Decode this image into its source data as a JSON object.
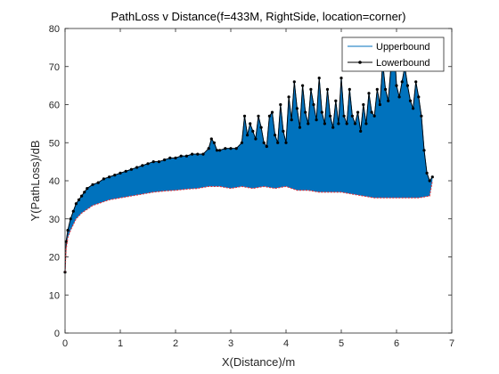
{
  "chart_data": {
    "type": "area",
    "title": "PathLoss v Distance(f=433M, RightSide, location=corner)",
    "xlabel": "X(Distance)/m",
    "ylabel": "Y(PathLoss)/dB",
    "xlim": [
      0,
      7
    ],
    "ylim": [
      0,
      80
    ],
    "xticks": [
      "0",
      "1",
      "2",
      "3",
      "4",
      "5",
      "6",
      "7"
    ],
    "yticks": [
      "0",
      "10",
      "20",
      "30",
      "40",
      "50",
      "60",
      "70",
      "80"
    ],
    "grid": false,
    "legend_position": "top-right",
    "fill_color": "#0072BD",
    "series": [
      {
        "name": "Upperbound",
        "color": "#0072BD",
        "x": [
          0,
          0.02,
          0.05,
          0.1,
          0.15,
          0.2,
          0.25,
          0.3,
          0.35,
          0.4,
          0.5,
          0.6,
          0.7,
          0.8,
          0.9,
          1.0,
          1.1,
          1.2,
          1.3,
          1.4,
          1.5,
          1.6,
          1.7,
          1.8,
          1.9,
          2.0,
          2.1,
          2.2,
          2.3,
          2.4,
          2.5,
          2.6,
          2.65,
          2.7,
          2.75,
          2.8,
          2.9,
          3.0,
          3.1,
          3.2,
          3.25,
          3.3,
          3.35,
          3.4,
          3.45,
          3.5,
          3.55,
          3.6,
          3.65,
          3.7,
          3.75,
          3.8,
          3.85,
          3.9,
          3.95,
          4.0,
          4.05,
          4.1,
          4.15,
          4.2,
          4.25,
          4.3,
          4.35,
          4.4,
          4.45,
          4.5,
          4.55,
          4.6,
          4.65,
          4.7,
          4.75,
          4.8,
          4.85,
          4.9,
          4.95,
          5.0,
          5.05,
          5.1,
          5.15,
          5.2,
          5.25,
          5.3,
          5.35,
          5.4,
          5.45,
          5.5,
          5.55,
          5.6,
          5.65,
          5.7,
          5.75,
          5.8,
          5.85,
          5.9,
          5.95,
          6.0,
          6.05,
          6.1,
          6.15,
          6.2,
          6.25,
          6.3,
          6.35,
          6.4,
          6.45,
          6.5,
          6.55,
          6.6,
          6.65
        ],
        "values": [
          16,
          24,
          27,
          30,
          32,
          34,
          35,
          36,
          37,
          38,
          39,
          39.5,
          40.5,
          41,
          41.5,
          42,
          42.5,
          43,
          43.5,
          44,
          44.5,
          45,
          45,
          45.5,
          46,
          46,
          46.5,
          46.5,
          47,
          47,
          47,
          48.5,
          51,
          50,
          48,
          48,
          48.5,
          48.5,
          48.5,
          50,
          57,
          52,
          55,
          53,
          51,
          57,
          54,
          50,
          49,
          57,
          58,
          52,
          50,
          60,
          53,
          50,
          62,
          56,
          66,
          59,
          54,
          65,
          58,
          55,
          64,
          60,
          56,
          67,
          58,
          55,
          64,
          57,
          54,
          61,
          55,
          67,
          57,
          55,
          64,
          57,
          55,
          58,
          53,
          60,
          55,
          63,
          58,
          57,
          64,
          60,
          71,
          64,
          61,
          70,
          77,
          65,
          62,
          66,
          70,
          65,
          61,
          59,
          66,
          62,
          57,
          48,
          42,
          40,
          41
        ]
      },
      {
        "name": "Lowerbound",
        "color": "#000000",
        "x": [
          0,
          0.02,
          0.05,
          0.1,
          0.15,
          0.2,
          0.3,
          0.4,
          0.5,
          0.6,
          0.8,
          1.0,
          1.2,
          1.4,
          1.6,
          1.8,
          2.0,
          2.2,
          2.4,
          2.6,
          2.8,
          3.0,
          3.2,
          3.4,
          3.6,
          3.8,
          4.0,
          4.2,
          4.4,
          4.6,
          4.8,
          5.0,
          5.2,
          5.4,
          5.6,
          5.8,
          6.0,
          6.2,
          6.4,
          6.6,
          6.65
        ],
        "values": [
          16,
          22,
          25,
          27,
          28.5,
          30,
          31.5,
          32.5,
          33.5,
          34,
          35,
          35.5,
          36,
          36.5,
          37,
          37.3,
          37.5,
          37.8,
          38,
          38.5,
          38.5,
          38,
          38.5,
          38,
          38.5,
          38,
          38.5,
          37.5,
          37.5,
          37,
          37,
          37,
          36.5,
          36,
          35.5,
          35.5,
          35.5,
          35.5,
          35.5,
          36,
          40
        ]
      }
    ]
  }
}
